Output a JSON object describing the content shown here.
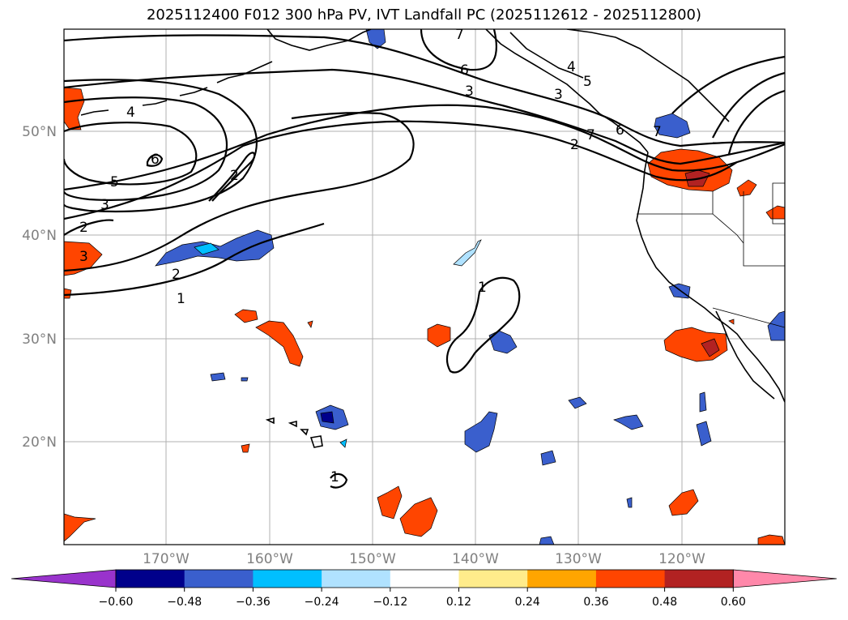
{
  "title": "2025112400 F012 300 hPa PV, IVT Landfall PC (2025112612 - 2025112800)",
  "map": {
    "lat_labels": [
      "50°N",
      "40°N",
      "30°N",
      "20°N"
    ],
    "lon_labels": [
      "170°W",
      "160°W",
      "150°W",
      "140°W",
      "130°W",
      "120°W"
    ],
    "gridlines": true,
    "contour_variable": "300 hPa PV",
    "contour_labels": [
      "1",
      "1",
      "1",
      "2",
      "2",
      "2",
      "3",
      "3",
      "3",
      "4",
      "5",
      "6",
      "6",
      "7",
      "7",
      "2",
      "3",
      "4",
      "5",
      "6",
      "7"
    ]
  },
  "colorbar": {
    "ticks": [
      "−0.60",
      "−0.48",
      "−0.36",
      "−0.24",
      "−0.12",
      "0.12",
      "0.24",
      "0.36",
      "0.48",
      "0.60"
    ],
    "colors": [
      "#9933cc",
      "#00008b",
      "#3a5fcd",
      "#00bfff",
      "#b0e2ff",
      "#ffffff",
      "#ffec8b",
      "#ffa500",
      "#ff4500",
      "#b22222",
      "#ff88aa"
    ],
    "extend": "both"
  }
}
